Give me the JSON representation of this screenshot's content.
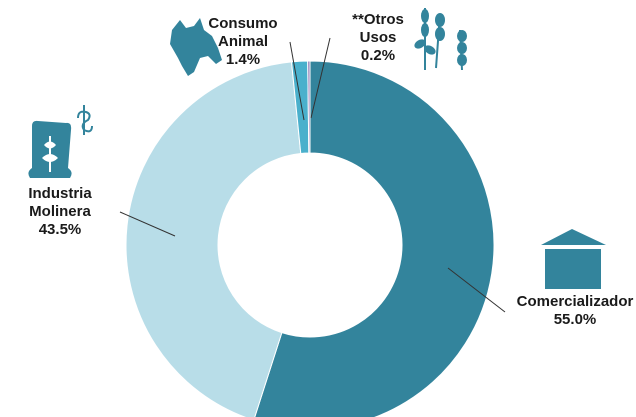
{
  "chart_data": {
    "type": "pie",
    "donut": true,
    "title": "",
    "slices": [
      {
        "label_lines": [
          "Comercializador"
        ],
        "value": 55.0,
        "value_label": "55.0%",
        "color": "#33849c"
      },
      {
        "label_lines": [
          "Industria",
          "Molinera"
        ],
        "value": 43.5,
        "value_label": "43.5%",
        "color": "#b8dde8"
      },
      {
        "label_lines": [
          "Consumo",
          "Animal"
        ],
        "value": 1.4,
        "value_label": "1.4%",
        "color": "#4ab0cc"
      },
      {
        "label_lines": [
          "**Otros",
          "Usos"
        ],
        "value": 0.2,
        "value_label": "0.2%",
        "color": "#8e77b3"
      }
    ],
    "icons": [
      "silo-icon",
      "flour-sack-icon",
      "cow-icon",
      "wheat-icon"
    ],
    "legend": "none"
  }
}
